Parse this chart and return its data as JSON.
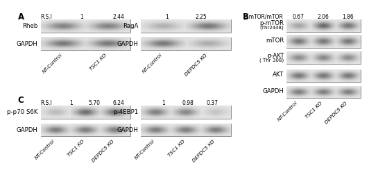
{
  "panel_A_label": "A",
  "panel_B_label": "B",
  "panel_C_label": "C",
  "rheb_rsi": [
    "R.S.I",
    "1",
    "2.44"
  ],
  "rheb_protein": "Rheb",
  "rheb_gapdh": "GAPDH",
  "rheb_xlabels": [
    "NT-Control",
    "TSC1 KO"
  ],
  "rheb_band_intens": [
    0.65,
    0.65
  ],
  "rheb_gapdh_intens": [
    0.72,
    0.72
  ],
  "raga_rsi": [
    "1",
    "2.25"
  ],
  "raga_protein": "RagA",
  "raga_gapdh": "GAPDH",
  "raga_xlabels": [
    "NT-Control",
    "DEPDC5 KO"
  ],
  "raga_band_intens": [
    0.35,
    0.72
  ],
  "raga_gapdh_intens": [
    0.72,
    0.38
  ],
  "b_ratio_label": "p-mTOR/mTOR",
  "b_ratio_vals": [
    "0.67",
    "2.06",
    "1.86"
  ],
  "b_xlabels": [
    "NT-Control",
    "TSC1 KO",
    "DEPDC5 KO"
  ],
  "b_proteins": [
    "p-mTOR",
    "(Thr2448)",
    "mTOR",
    "p-AKT",
    "( Thr 308)",
    "AKT",
    "GAPDH"
  ],
  "b_pmtor_intens": [
    0.42,
    0.82,
    0.72
  ],
  "b_mtor_intens": [
    0.72,
    0.72,
    0.72
  ],
  "b_pakt_intens": [
    0.58,
    0.62,
    0.58
  ],
  "b_akt_intens": [
    0.72,
    0.72,
    0.72
  ],
  "b_gapdh_intens": [
    0.68,
    0.68,
    0.68
  ],
  "c1_rsi": [
    "R.S.I",
    "1",
    "5.70",
    "6.24"
  ],
  "c1_protein": "p-p70 S6K",
  "c1_gapdh": "GAPDH",
  "c1_xlabels": [
    "NT-Control",
    "TSC1 KO",
    "DEPDC5 KO"
  ],
  "c1_band_intens": [
    0.28,
    0.78,
    0.78
  ],
  "c1_gapdh_intens": [
    0.68,
    0.68,
    0.68
  ],
  "c2_rsi": [
    "1",
    "0.98",
    "0.37"
  ],
  "c2_protein": "p-4EBP1",
  "c2_gapdh": "GAPDH",
  "c2_xlabels": [
    "NT-Control",
    "TSC1 KO",
    "DEPDC5 KO"
  ],
  "c2_band_intens": [
    0.68,
    0.62,
    0.22
  ],
  "c2_gapdh_intens": [
    0.68,
    0.68,
    0.68
  ]
}
